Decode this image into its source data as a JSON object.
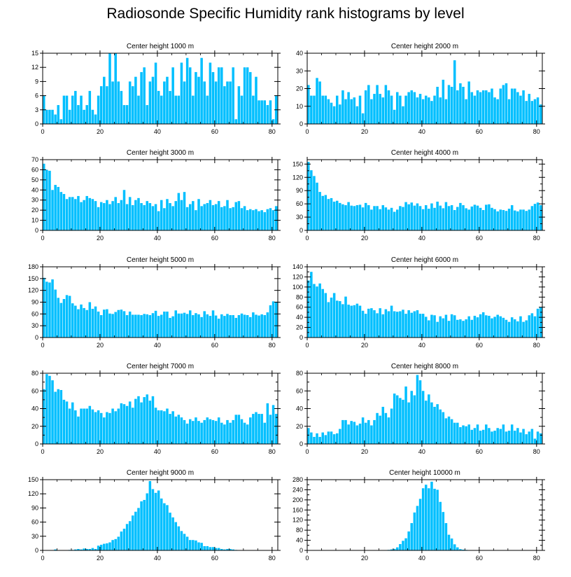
{
  "figure": {
    "title": "Radiosonde Specific Humidity rank histograms by level"
  },
  "colors": {
    "bar": "#00bfff",
    "bar_edge": "#ffffff",
    "axis": "#000000"
  },
  "chart_data": [
    {
      "type": "bar",
      "title": "Center height 1000 m",
      "xlim": [
        0,
        82
      ],
      "ylim": [
        0,
        15
      ],
      "xticks": [
        0,
        20,
        40,
        60,
        80
      ],
      "yticks": [
        0,
        3,
        6,
        9,
        12,
        15
      ],
      "values": [
        6,
        3,
        3,
        3,
        2,
        4,
        1,
        6,
        6,
        3,
        6,
        7,
        4,
        6,
        3,
        4,
        7,
        3,
        2,
        6,
        8,
        10,
        8,
        15,
        9,
        15,
        9,
        7,
        4,
        4,
        9,
        8,
        10,
        6,
        11,
        12,
        4,
        9,
        10,
        13,
        7,
        6,
        9,
        10,
        7,
        12,
        6,
        6,
        13,
        9,
        14,
        12,
        6,
        11,
        10,
        14,
        9,
        6,
        13,
        11,
        9,
        12,
        12,
        8,
        9,
        9,
        12,
        1,
        8,
        6,
        12,
        12,
        11,
        6,
        10,
        5,
        5,
        5,
        4,
        5,
        1,
        6
      ]
    },
    {
      "type": "bar",
      "title": "Center height 2000 m",
      "xlim": [
        0,
        82
      ],
      "ylim": [
        0,
        40
      ],
      "xticks": [
        0,
        20,
        40,
        60,
        80
      ],
      "yticks": [
        0,
        10,
        20,
        30,
        40
      ],
      "values": [
        22,
        16,
        16,
        26,
        24,
        16,
        16,
        14,
        12,
        10,
        16,
        11,
        19,
        14,
        18,
        14,
        15,
        10,
        16,
        6,
        19,
        22,
        14,
        17,
        22,
        17,
        15,
        22,
        19,
        16,
        8,
        18,
        16,
        10,
        16,
        18,
        19,
        18,
        15,
        17,
        14,
        16,
        15,
        13,
        16,
        21,
        15,
        25,
        14,
        22,
        21,
        36,
        19,
        23,
        21,
        14,
        24,
        18,
        16,
        19,
        18,
        19,
        19,
        18,
        20,
        15,
        14,
        20,
        22,
        23,
        14,
        20,
        20,
        18,
        16,
        19,
        13,
        17,
        13,
        14,
        15,
        11
      ]
    },
    {
      "type": "bar",
      "title": "Center height 3000 m",
      "xlim": [
        0,
        82
      ],
      "ylim": [
        0,
        70
      ],
      "xticks": [
        0,
        20,
        40,
        60,
        80
      ],
      "yticks": [
        0,
        10,
        20,
        30,
        40,
        50,
        60,
        70
      ],
      "values": [
        66,
        60,
        59,
        40,
        45,
        43,
        38,
        36,
        31,
        33,
        33,
        31,
        34,
        28,
        30,
        34,
        32,
        31,
        29,
        23,
        28,
        27,
        30,
        26,
        29,
        33,
        27,
        30,
        40,
        26,
        33,
        25,
        30,
        32,
        27,
        25,
        29,
        27,
        24,
        26,
        19,
        30,
        22,
        31,
        27,
        24,
        29,
        37,
        30,
        38,
        23,
        26,
        29,
        20,
        31,
        24,
        26,
        27,
        30,
        25,
        26,
        29,
        23,
        24,
        30,
        22,
        23,
        28,
        29,
        22,
        24,
        20,
        21,
        20,
        21,
        19,
        20,
        18,
        21,
        22,
        20,
        24
      ]
    },
    {
      "type": "bar",
      "title": "Center height 4000 m",
      "xlim": [
        0,
        82
      ],
      "ylim": [
        0,
        160
      ],
      "xticks": [
        0,
        20,
        40,
        60,
        80
      ],
      "yticks": [
        0,
        15,
        30,
        45,
        60,
        75,
        90,
        105,
        120,
        135,
        150
      ],
      "ytick_labels": [
        "0",
        "30",
        "60",
        "90",
        "120",
        "150"
      ],
      "values": [
        155,
        136,
        123,
        108,
        87,
        78,
        80,
        71,
        73,
        65,
        67,
        62,
        59,
        57,
        64,
        56,
        55,
        57,
        58,
        52,
        62,
        57,
        47,
        55,
        55,
        48,
        57,
        52,
        47,
        51,
        42,
        47,
        55,
        53,
        64,
        59,
        63,
        56,
        61,
        55,
        48,
        57,
        49,
        61,
        51,
        65,
        56,
        50,
        64,
        55,
        57,
        46,
        53,
        62,
        57,
        50,
        47,
        54,
        58,
        56,
        51,
        46,
        58,
        59,
        51,
        48,
        43,
        47,
        46,
        44,
        49,
        57,
        45,
        43,
        47,
        47,
        44,
        47,
        55,
        60,
        63,
        57
      ]
    },
    {
      "type": "bar",
      "title": "Center height 5000 m",
      "xlim": [
        0,
        82
      ],
      "ylim": [
        0,
        180
      ],
      "xticks": [
        0,
        20,
        40,
        60,
        80
      ],
      "yticks": [
        0,
        30,
        60,
        90,
        120,
        150,
        180
      ],
      "values": [
        152,
        142,
        140,
        148,
        122,
        101,
        88,
        98,
        108,
        106,
        87,
        81,
        72,
        84,
        75,
        70,
        90,
        73,
        79,
        66,
        57,
        71,
        72,
        61,
        60,
        65,
        70,
        71,
        67,
        57,
        66,
        58,
        58,
        58,
        57,
        60,
        59,
        57,
        62,
        68,
        55,
        58,
        66,
        66,
        50,
        54,
        69,
        61,
        61,
        63,
        60,
        69,
        57,
        62,
        59,
        52,
        67,
        59,
        55,
        69,
        56,
        48,
        59,
        55,
        60,
        57,
        57,
        50,
        57,
        61,
        58,
        57,
        52,
        64,
        58,
        56,
        59,
        57,
        64,
        82,
        92,
        91
      ]
    },
    {
      "type": "bar",
      "title": "Center height 6000 m",
      "xlim": [
        0,
        82
      ],
      "ylim": [
        0,
        140
      ],
      "xticks": [
        0,
        20,
        40,
        60,
        80
      ],
      "yticks": [
        0,
        10,
        20,
        30,
        40,
        50,
        60,
        70,
        80,
        90,
        100,
        110,
        120,
        130,
        140
      ],
      "ytick_labels": [
        "0",
        "20",
        "40",
        "60",
        "80",
        "100",
        "120",
        "140"
      ],
      "values": [
        113,
        130,
        106,
        101,
        107,
        96,
        88,
        70,
        79,
        88,
        73,
        72,
        66,
        81,
        65,
        63,
        64,
        67,
        63,
        53,
        47,
        57,
        58,
        54,
        48,
        58,
        46,
        56,
        52,
        63,
        52,
        51,
        52,
        55,
        47,
        54,
        49,
        52,
        54,
        47,
        47,
        41,
        34,
        45,
        44,
        31,
        42,
        38,
        45,
        33,
        46,
        44,
        35,
        36,
        33,
        36,
        42,
        35,
        43,
        40,
        46,
        50,
        44,
        43,
        38,
        41,
        45,
        42,
        39,
        35,
        31,
        40,
        36,
        32,
        42,
        31,
        34,
        44,
        48,
        42,
        57,
        60
      ]
    },
    {
      "type": "bar",
      "title": "Center height 7000 m",
      "xlim": [
        0,
        82
      ],
      "ylim": [
        0,
        80
      ],
      "xticks": [
        0,
        20,
        40,
        60,
        80
      ],
      "yticks": [
        0,
        10,
        20,
        30,
        40,
        50,
        60,
        70,
        80
      ],
      "ytick_labels": [
        "0",
        "20",
        "40",
        "60",
        "80"
      ],
      "values": [
        62,
        79,
        77,
        72,
        59,
        62,
        61,
        50,
        48,
        40,
        47,
        38,
        31,
        40,
        40,
        40,
        43,
        39,
        36,
        38,
        35,
        30,
        36,
        35,
        40,
        37,
        40,
        46,
        45,
        43,
        48,
        41,
        51,
        54,
        47,
        53,
        56,
        49,
        54,
        41,
        38,
        38,
        37,
        40,
        34,
        37,
        31,
        33,
        30,
        27,
        23,
        28,
        26,
        30,
        26,
        24,
        27,
        30,
        28,
        27,
        26,
        30,
        24,
        22,
        27,
        24,
        27,
        33,
        33,
        28,
        24,
        22,
        30,
        34,
        36,
        34,
        34,
        24,
        46,
        33,
        44,
        34
      ]
    },
    {
      "type": "bar",
      "title": "Center height 8000 m",
      "xlim": [
        0,
        82
      ],
      "ylim": [
        0,
        80
      ],
      "xticks": [
        0,
        20,
        40,
        60,
        80
      ],
      "yticks": [
        0,
        10,
        20,
        30,
        40,
        50,
        60,
        70,
        80
      ],
      "ytick_labels": [
        "0",
        "20",
        "40",
        "60",
        "80"
      ],
      "values": [
        18,
        13,
        8,
        12,
        8,
        13,
        10,
        14,
        14,
        11,
        12,
        17,
        27,
        27,
        22,
        26,
        25,
        21,
        23,
        30,
        24,
        27,
        21,
        27,
        35,
        32,
        42,
        35,
        30,
        40,
        57,
        55,
        52,
        50,
        65,
        47,
        60,
        55,
        78,
        72,
        60,
        49,
        56,
        47,
        42,
        45,
        39,
        36,
        29,
        31,
        28,
        24,
        24,
        19,
        21,
        20,
        22,
        16,
        18,
        22,
        15,
        16,
        22,
        18,
        14,
        15,
        18,
        17,
        22,
        14,
        15,
        22,
        15,
        18,
        13,
        17,
        11,
        14,
        17,
        6,
        14,
        12
      ]
    },
    {
      "type": "bar",
      "title": "Center height 9000 m",
      "xlim": [
        0,
        82
      ],
      "ylim": [
        0,
        150
      ],
      "xticks": [
        0,
        20,
        40,
        60,
        80
      ],
      "yticks": [
        0,
        30,
        60,
        90,
        120,
        150
      ],
      "values": [
        0,
        0,
        0,
        0,
        2,
        0,
        0,
        0,
        0,
        1,
        1,
        2,
        3,
        2,
        4,
        3,
        3,
        5,
        3,
        10,
        12,
        14,
        15,
        17,
        22,
        24,
        29,
        40,
        46,
        56,
        62,
        74,
        82,
        90,
        104,
        107,
        121,
        147,
        130,
        122,
        127,
        110,
        100,
        96,
        80,
        70,
        60,
        51,
        41,
        35,
        29,
        22,
        22,
        21,
        17,
        16,
        9,
        9,
        7,
        7,
        5,
        5,
        3,
        2,
        3,
        3,
        2,
        1,
        0,
        0,
        0,
        0,
        0,
        0,
        0,
        0,
        0,
        0,
        0,
        0,
        0,
        0
      ]
    },
    {
      "type": "bar",
      "title": "Center height 10000 m",
      "xlim": [
        0,
        82
      ],
      "ylim": [
        0,
        280
      ],
      "xticks": [
        0,
        20,
        40,
        60,
        80
      ],
      "yticks": [
        0,
        20,
        40,
        60,
        80,
        100,
        120,
        140,
        160,
        180,
        200,
        220,
        240,
        260,
        280
      ],
      "ytick_labels": [
        "0",
        "40",
        "80",
        "120",
        "160",
        "200",
        "240",
        "280"
      ],
      "values": [
        0,
        0,
        0,
        0,
        0,
        0,
        0,
        0,
        0,
        0,
        0,
        0,
        0,
        0,
        0,
        0,
        0,
        0,
        0,
        0,
        0,
        0,
        0,
        0,
        0,
        0,
        1,
        1,
        2,
        4,
        6,
        12,
        25,
        38,
        48,
        75,
        108,
        150,
        176,
        204,
        246,
        260,
        246,
        272,
        244,
        240,
        192,
        152,
        108,
        62,
        47,
        24,
        12,
        5,
        3,
        2,
        1,
        1,
        1,
        0,
        0,
        0,
        0,
        0,
        0,
        0,
        0,
        0,
        0,
        0,
        0,
        0,
        0,
        0,
        0,
        0,
        0,
        0,
        0,
        0,
        0,
        0
      ]
    }
  ]
}
